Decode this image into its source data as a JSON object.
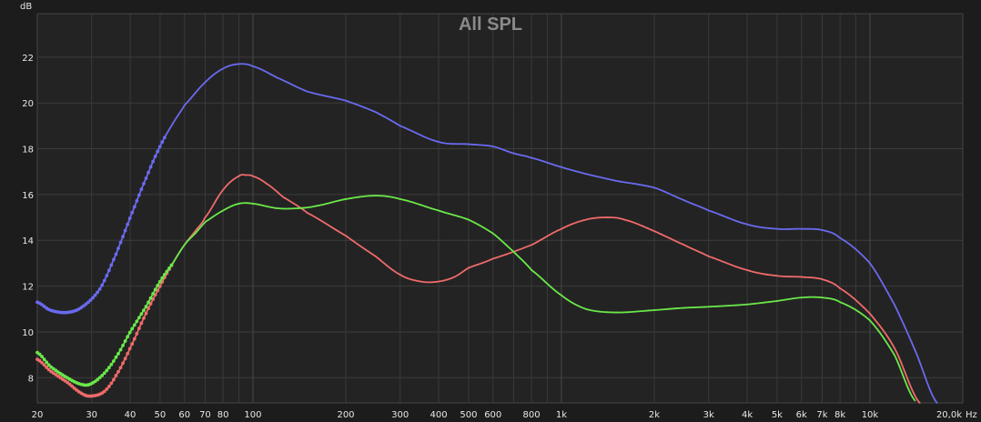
{
  "chart_data": {
    "type": "line",
    "title": "All SPL",
    "ylabel": "dB",
    "xunit": "Hz",
    "xscale": "log",
    "xlim": [
      20,
      20000
    ],
    "ylim": [
      6.9,
      23.9
    ],
    "grid": true,
    "yticks": [
      8,
      10,
      12,
      14,
      16,
      18,
      20,
      22
    ],
    "xticks": [
      20,
      30,
      40,
      50,
      60,
      70,
      80,
      100,
      200,
      300,
      400,
      500,
      600,
      800,
      1000,
      2000,
      3000,
      4000,
      5000,
      6000,
      7000,
      8000,
      10000,
      20000
    ],
    "xtick_labels": [
      "20",
      "30",
      "40",
      "50",
      "60",
      "70",
      "80",
      "100",
      "200",
      "300",
      "400",
      "500",
      "600",
      "800",
      "1k",
      "2k",
      "3k",
      "4k",
      "5k",
      "6k",
      "7k",
      "8k",
      "10k",
      "20,0k"
    ],
    "series": [
      {
        "color": "#6a6af0",
        "x": [
          20,
          22,
          25,
          28,
          32,
          36,
          40,
          45,
          50,
          55,
          60,
          70,
          80,
          90,
          100,
          120,
          150,
          200,
          250,
          300,
          400,
          500,
          600,
          700,
          800,
          1000,
          1200,
          1500,
          2000,
          2500,
          3000,
          4000,
          5000,
          6000,
          7000,
          8000,
          10000,
          12000,
          14000,
          16500
        ],
        "y": [
          11.3,
          10.95,
          10.85,
          11.1,
          11.9,
          13.4,
          15.0,
          16.7,
          18.1,
          19.1,
          19.9,
          20.9,
          21.5,
          21.7,
          21.6,
          21.1,
          20.5,
          20.1,
          19.6,
          19.0,
          18.3,
          18.2,
          18.1,
          17.8,
          17.6,
          17.2,
          16.9,
          16.6,
          16.3,
          15.75,
          15.3,
          14.7,
          14.5,
          14.5,
          14.45,
          14.1,
          13.0,
          11.2,
          9.2,
          6.9
        ]
      },
      {
        "color": "#f06a6a",
        "x": [
          20,
          22,
          25,
          28,
          30,
          33,
          36,
          40,
          45,
          50,
          55,
          60,
          65,
          70,
          80,
          90,
          95,
          100,
          110,
          125,
          150,
          200,
          250,
          300,
          350,
          400,
          450,
          500,
          600,
          800,
          1000,
          1200,
          1400,
          1600,
          2000,
          2500,
          3000,
          4000,
          5000,
          6000,
          7000,
          8000,
          10000,
          12000,
          14500
        ],
        "y": [
          8.8,
          8.3,
          7.8,
          7.3,
          7.2,
          7.4,
          8.1,
          9.3,
          10.8,
          12.0,
          13.0,
          13.8,
          14.4,
          15.0,
          16.2,
          16.8,
          16.85,
          16.8,
          16.5,
          15.9,
          15.2,
          14.2,
          13.3,
          12.5,
          12.2,
          12.2,
          12.4,
          12.8,
          13.2,
          13.8,
          14.5,
          14.9,
          15.0,
          14.9,
          14.4,
          13.8,
          13.3,
          12.7,
          12.45,
          12.4,
          12.3,
          11.9,
          10.8,
          9.3,
          6.9
        ]
      },
      {
        "color": "#6ae84a",
        "x": [
          20,
          22,
          25,
          28,
          30,
          33,
          36,
          40,
          45,
          50,
          55,
          60,
          65,
          70,
          80,
          90,
          100,
          120,
          140,
          160,
          200,
          250,
          300,
          400,
          500,
          600,
          700,
          800,
          1000,
          1200,
          1500,
          2000,
          2500,
          3000,
          4000,
          5000,
          6000,
          7000,
          8000,
          10000,
          12000,
          14000
        ],
        "y": [
          9.1,
          8.5,
          8.0,
          7.7,
          7.75,
          8.2,
          8.9,
          10.0,
          11.1,
          12.2,
          13.0,
          13.8,
          14.3,
          14.8,
          15.3,
          15.6,
          15.6,
          15.4,
          15.4,
          15.5,
          15.8,
          15.95,
          15.8,
          15.3,
          14.9,
          14.3,
          13.5,
          12.7,
          11.6,
          11.0,
          10.85,
          10.95,
          11.05,
          11.1,
          11.2,
          11.35,
          11.5,
          11.5,
          11.3,
          10.5,
          9.0,
          7.0
        ]
      }
    ]
  }
}
